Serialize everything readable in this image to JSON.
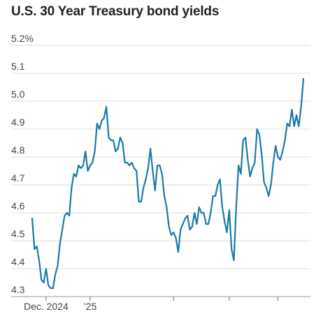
{
  "chart_data": {
    "type": "line",
    "title": "U.S. 30 Year Treasury bond yields",
    "xlabel": "",
    "ylabel": "",
    "ylim": [
      4.3,
      5.2
    ],
    "y_ticks": [
      "5.2%",
      "5.1",
      "5.0",
      "4.9",
      "4.8",
      "4.7",
      "4.6",
      "4.5",
      "4.4",
      "4.3"
    ],
    "x_tick_labels": [
      {
        "label": "Dec. 2024",
        "index": 6
      },
      {
        "label": "’25",
        "index": 25
      }
    ],
    "x_ticks_unlabeled": [
      61,
      85,
      106
    ],
    "grid": true,
    "color": "#1b7aa8",
    "series": [
      {
        "values": [
          4.58,
          4.47,
          4.48,
          4.43,
          4.36,
          4.35,
          4.4,
          4.34,
          4.33,
          4.33,
          4.38,
          4.41,
          4.49,
          4.54,
          4.59,
          4.6,
          4.59,
          4.69,
          4.74,
          4.73,
          4.77,
          4.76,
          4.77,
          4.82,
          4.75,
          4.77,
          4.78,
          4.82,
          4.92,
          4.9,
          4.93,
          4.94,
          4.98,
          4.87,
          4.86,
          4.86,
          4.82,
          4.83,
          4.87,
          4.85,
          4.78,
          4.78,
          4.77,
          4.78,
          4.76,
          4.75,
          4.64,
          4.64,
          4.69,
          4.72,
          4.76,
          4.83,
          4.75,
          4.68,
          4.77,
          4.77,
          4.74,
          4.66,
          4.62,
          4.55,
          4.52,
          4.53,
          4.51,
          4.46,
          4.54,
          4.56,
          4.58,
          4.59,
          4.54,
          4.55,
          4.6,
          4.56,
          4.62,
          4.6,
          4.6,
          4.56,
          4.56,
          4.6,
          4.66,
          4.66,
          4.7,
          4.72,
          4.62,
          4.57,
          4.53,
          4.61,
          4.47,
          4.43,
          4.62,
          4.77,
          4.74,
          4.86,
          4.87,
          4.79,
          4.73,
          4.76,
          4.78,
          4.9,
          4.88,
          4.81,
          4.71,
          4.69,
          4.66,
          4.7,
          4.78,
          4.84,
          4.8,
          4.79,
          4.82,
          4.86,
          4.92,
          4.91,
          4.97,
          4.91,
          4.95,
          4.91,
          4.98,
          5.08
        ]
      }
    ]
  }
}
